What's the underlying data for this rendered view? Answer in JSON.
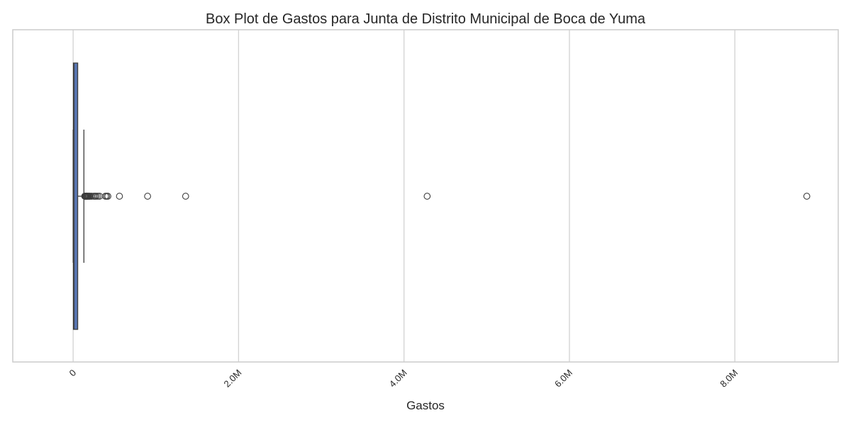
{
  "chart_data": {
    "type": "box",
    "orientation": "horizontal",
    "title": "Box Plot de Gastos para Junta de Distrito Municipal de Boca de Yuma",
    "xlabel": "Gastos",
    "ylabel": "",
    "xlim": [
      -730000,
      9250000
    ],
    "x_ticks": [
      {
        "value": 0,
        "label": "0"
      },
      {
        "value": 2000000,
        "label": "2.0M"
      },
      {
        "value": 4000000,
        "label": "4.0M"
      },
      {
        "value": 6000000,
        "label": "6.0M"
      },
      {
        "value": 8000000,
        "label": "8.0M"
      }
    ],
    "tick_label_rotation_deg": 45,
    "grid": {
      "x": true,
      "y": false
    },
    "colors": {
      "box_fill": "#5875b1",
      "box_edge": "#3d3d3d",
      "whisker": "#3d3d3d",
      "median": "#3d3d3d",
      "flier_edge": "#3d3d3d",
      "grid": "#d2d2d2",
      "spine": "#cccccc",
      "text": "#262626"
    },
    "box": {
      "whisker_low": 0,
      "q1": 3000,
      "median": 10000,
      "q3": 55000,
      "whisker_high": 130000
    },
    "outliers": [
      140000,
      142000,
      145000,
      148000,
      150000,
      153000,
      156000,
      160000,
      165000,
      170000,
      178000,
      185000,
      195000,
      205000,
      225000,
      250000,
      265000,
      280000,
      300000,
      320000,
      390000,
      405000,
      420000,
      560000,
      900000,
      1360000,
      4280000,
      8870000
    ]
  }
}
